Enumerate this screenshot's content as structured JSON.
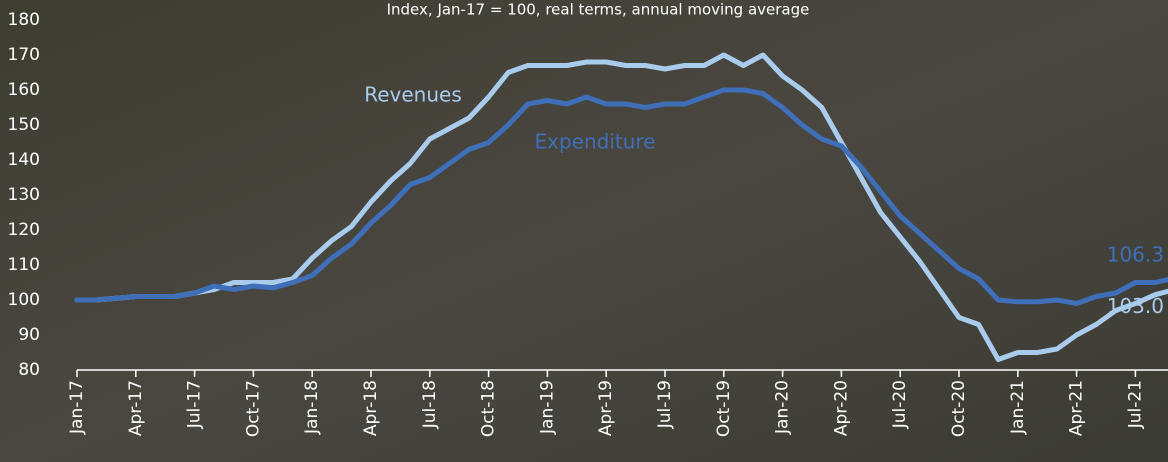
{
  "chart_data": {
    "type": "line",
    "subtitle": "Index, Jan-17 = 100, real terms, annual moving average",
    "categories": [
      "Jan-17",
      null,
      null,
      "Apr-17",
      null,
      null,
      "Jul-17",
      null,
      null,
      "Oct-17",
      null,
      null,
      "Jan-18",
      null,
      null,
      "Apr-18",
      null,
      null,
      "Jul-18",
      null,
      null,
      "Oct-18",
      null,
      null,
      "Jan-19",
      null,
      null,
      "Apr-19",
      null,
      null,
      "Jul-19",
      null,
      null,
      "Oct-19",
      null,
      null,
      "Jan-20",
      null,
      null,
      "Apr-20",
      null,
      null,
      "Jul-20",
      null,
      null,
      "Oct-20",
      null,
      null,
      "Jan-21",
      null,
      null,
      "Apr-21",
      null,
      null,
      "Jul-21",
      null,
      null
    ],
    "series": [
      {
        "name": "Revenues",
        "color": "#a9cbec",
        "values": [
          100,
          100,
          100.5,
          101,
          101,
          101,
          102,
          103,
          105,
          105,
          105,
          106,
          112,
          117,
          121,
          128,
          134,
          139,
          146,
          149,
          152,
          158,
          165,
          167,
          167,
          167,
          168,
          168,
          167,
          167,
          166,
          167,
          167,
          170,
          167,
          170,
          164,
          160,
          155,
          145,
          135,
          125,
          118,
          111,
          103,
          95,
          93,
          83,
          85,
          85,
          86,
          90,
          93,
          97,
          99,
          101.5,
          103.0
        ],
        "value_labels": [
          null,
          null,
          null,
          null,
          null,
          null,
          null,
          null,
          null,
          null,
          null,
          null,
          null,
          null,
          null,
          null,
          null,
          null,
          null,
          null,
          null,
          null,
          null,
          null,
          null,
          null,
          null,
          null,
          null,
          null,
          null,
          null,
          null,
          null,
          null,
          null,
          null,
          null,
          null,
          null,
          null,
          null,
          null,
          null,
          null,
          null,
          null,
          null,
          null,
          null,
          null,
          null,
          null,
          null,
          null,
          null,
          "103.0"
        ]
      },
      {
        "name": "Expenditure",
        "color": "#3f6fb8",
        "values": [
          100,
          100,
          100.5,
          101,
          101,
          101,
          102,
          104,
          103,
          104,
          103.5,
          105,
          107,
          112,
          116,
          122,
          127,
          133,
          135,
          139,
          143,
          145,
          150,
          156,
          157,
          156,
          158,
          156,
          156,
          155,
          156,
          156,
          158,
          160,
          160,
          159,
          155,
          150,
          146,
          144,
          138,
          131,
          124,
          119,
          114,
          109,
          106,
          100,
          99.5,
          99.5,
          100,
          99,
          101,
          102,
          105,
          105,
          106.3
        ],
        "value_labels": [
          null,
          null,
          null,
          null,
          null,
          null,
          null,
          null,
          null,
          null,
          null,
          null,
          null,
          null,
          null,
          null,
          null,
          null,
          null,
          null,
          null,
          null,
          null,
          null,
          null,
          null,
          null,
          null,
          null,
          null,
          null,
          null,
          null,
          null,
          null,
          null,
          null,
          null,
          null,
          null,
          null,
          null,
          null,
          null,
          null,
          null,
          null,
          null,
          null,
          null,
          null,
          null,
          null,
          null,
          null,
          null,
          "106.3"
        ]
      }
    ],
    "ylim": [
      80,
      180
    ],
    "yticks": [
      80,
      90,
      100,
      110,
      120,
      130,
      140,
      150,
      160,
      170,
      180
    ]
  }
}
